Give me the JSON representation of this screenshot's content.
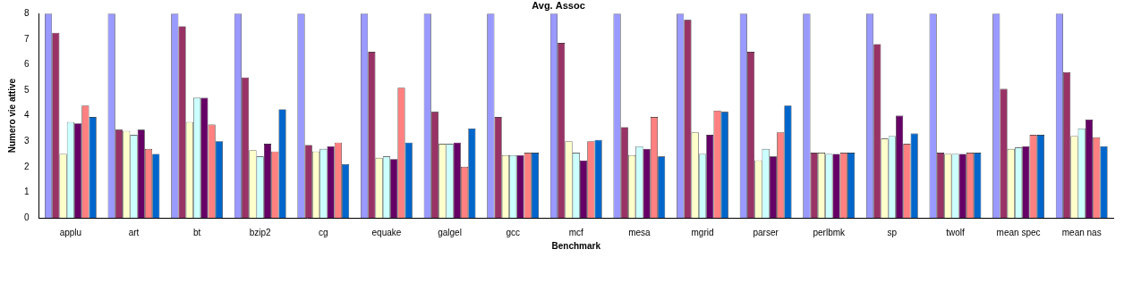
{
  "chart_data": {
    "type": "bar",
    "title": "Avg. Assoc",
    "x_label": "Benchmark",
    "y_label": "Numero vie attive",
    "categories": [
      "applu",
      "art",
      "bt",
      "bzip2",
      "cg",
      "equake",
      "galgel",
      "gcc",
      "mcf",
      "mesa",
      "mgrid",
      "parser",
      "perlbmk",
      "sp",
      "twolf",
      "mean spec",
      "mean nas"
    ],
    "series": [
      {
        "color": "#9999ff",
        "values": [
          8,
          8,
          8,
          8,
          8,
          8,
          8,
          8,
          8,
          8,
          8,
          8,
          8,
          8,
          8,
          8,
          8
        ]
      },
      {
        "color": "#993366",
        "values": [
          7.25,
          3.45,
          7.5,
          5.5,
          2.85,
          6.5,
          4.15,
          3.95,
          6.85,
          3.55,
          7.75,
          6.5,
          2.55,
          6.8,
          2.55,
          5.05,
          5.7
        ]
      },
      {
        "color": "#ffffcc",
        "values": [
          2.5,
          3.4,
          3.75,
          2.65,
          2.6,
          2.35,
          2.9,
          2.45,
          3.0,
          2.45,
          3.35,
          2.25,
          2.55,
          3.1,
          2.5,
          2.7,
          3.2
        ]
      },
      {
        "color": "#ccffff",
        "values": [
          3.75,
          3.25,
          4.7,
          2.4,
          2.7,
          2.4,
          2.9,
          2.45,
          2.55,
          2.8,
          2.5,
          2.7,
          2.5,
          3.2,
          2.5,
          2.75,
          3.5
        ]
      },
      {
        "color": "#660066",
        "values": [
          3.7,
          3.45,
          4.7,
          2.9,
          2.8,
          2.3,
          2.95,
          2.45,
          2.25,
          2.7,
          3.25,
          2.4,
          2.5,
          4.0,
          2.5,
          2.8,
          3.85
        ]
      },
      {
        "color": "#ff8080",
        "values": [
          4.4,
          2.7,
          3.65,
          2.6,
          2.95,
          5.1,
          2.0,
          2.55,
          3.0,
          3.95,
          4.2,
          3.35,
          2.55,
          2.9,
          2.55,
          3.25,
          3.15
        ]
      },
      {
        "color": "#0066cc",
        "values": [
          3.95,
          2.5,
          3.0,
          4.25,
          2.1,
          2.95,
          3.5,
          2.55,
          3.05,
          2.4,
          4.15,
          4.4,
          2.55,
          3.3,
          2.55,
          3.25,
          2.8
        ]
      }
    ],
    "ylim": [
      0,
      8
    ],
    "yticks": [
      0,
      1,
      2,
      3,
      4,
      5,
      6,
      7,
      8
    ],
    "grid": false
  }
}
